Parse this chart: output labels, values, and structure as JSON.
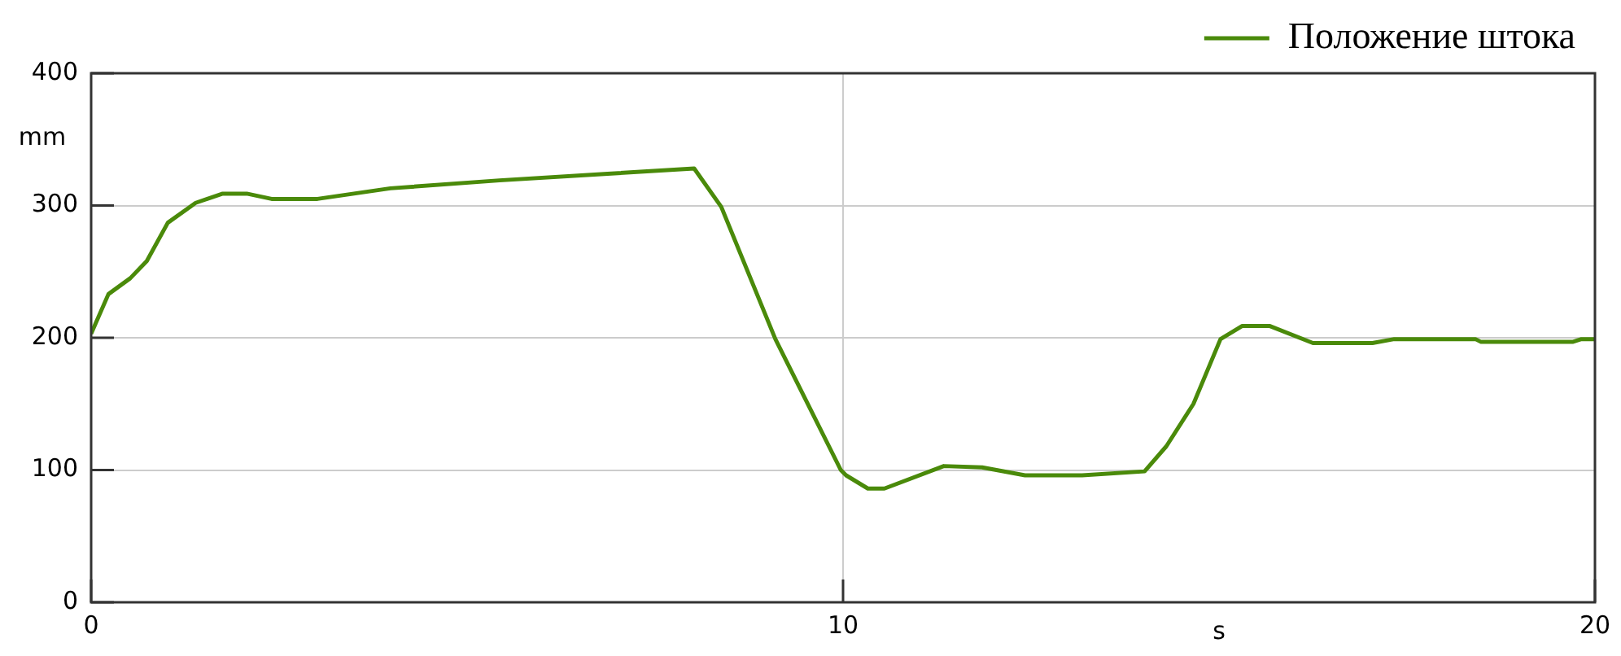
{
  "chart_data": {
    "type": "line",
    "xlabel": "s",
    "ylabel": "mm",
    "legend": "top right",
    "grid": true,
    "marker": "none",
    "line_style": "solid",
    "xlim": [
      0,
      20
    ],
    "xticks": [
      0,
      10,
      20
    ],
    "ylim": [
      0,
      400
    ],
    "yticks": [
      0,
      100,
      200,
      300,
      400
    ],
    "series": [
      {
        "name": "Положение штока",
        "color": "#4a8a0a",
        "x": [
          0,
          0.23,
          0.52,
          0.74,
          1.02,
          1.39,
          1.75,
          2.07,
          2.4,
          3.01,
          3.98,
          5.43,
          6.87,
          8.02,
          8.38,
          9.1,
          9.97,
          10.04,
          10.33,
          10.55,
          11.34,
          11.85,
          12.42,
          13.18,
          14.01,
          14.3,
          14.66,
          15.02,
          15.31,
          15.67,
          16.25,
          17.04,
          17.33,
          18.41,
          18.48,
          19.71,
          19.82,
          20
        ],
        "values": [
          203,
          233,
          245,
          258,
          287,
          302,
          309,
          309,
          305,
          305,
          313,
          319,
          324,
          328,
          299,
          199,
          100,
          96,
          86,
          86,
          103,
          102,
          96,
          96,
          99,
          118,
          150,
          199,
          209,
          209,
          196,
          196,
          199,
          199,
          197,
          197,
          199,
          199
        ]
      }
    ]
  }
}
